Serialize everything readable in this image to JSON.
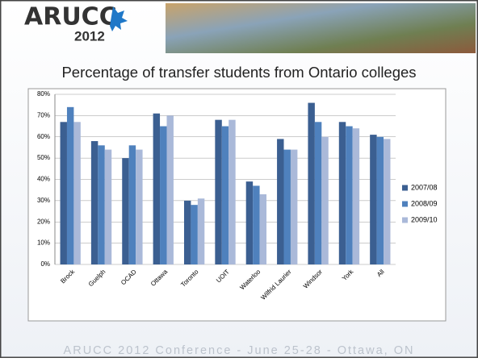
{
  "header": {
    "logo": "ARUCC",
    "logo_year": "2012"
  },
  "footer": "ARUCC 2012 Conference - June 25-28 - Ottawa, ON",
  "chart_data": {
    "type": "bar",
    "title": "Percentage of transfer students from Ontario colleges",
    "categories": [
      "Brock",
      "Guelph",
      "OCAD",
      "Ottawa",
      "Toronto",
      "UOIT",
      "Waterloo",
      "Wilfrid Laurier",
      "Windsor",
      "York",
      "All"
    ],
    "series": [
      {
        "name": "2007/08",
        "color": "#3b5f91",
        "values": [
          67,
          58,
          50,
          71,
          30,
          68,
          39,
          59,
          76,
          67,
          61
        ]
      },
      {
        "name": "2008/09",
        "color": "#4f81bd",
        "values": [
          74,
          56,
          56,
          65,
          28,
          65,
          37,
          54,
          67,
          65,
          60
        ]
      },
      {
        "name": "2009/10",
        "color": "#aab9d9",
        "values": [
          67,
          54,
          54,
          70,
          31,
          68,
          33,
          54,
          60,
          64,
          59
        ]
      }
    ],
    "ylim": [
      0,
      80
    ],
    "yticks": [
      {
        "value": 0,
        "label": "0%"
      },
      {
        "value": 10,
        "label": "10%"
      },
      {
        "value": 20,
        "label": "20%"
      },
      {
        "value": 30,
        "label": "30%"
      },
      {
        "value": 40,
        "label": "40%"
      },
      {
        "value": 50,
        "label": "50%"
      },
      {
        "value": 60,
        "label": "60%"
      },
      {
        "value": 70,
        "label": "70%"
      },
      {
        "value": 80,
        "label": "80%"
      }
    ],
    "grid": true,
    "legend": "right"
  }
}
